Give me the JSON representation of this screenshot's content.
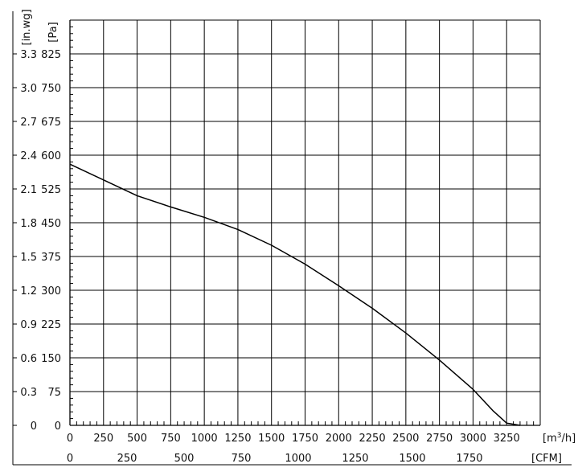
{
  "chart_data": {
    "type": "line",
    "x_label_primary": "[m³/h]",
    "x_label_primary_base": "[m",
    "x_label_primary_sup": "3",
    "x_label_primary_tail": "/h]",
    "x_label_secondary": "[CFM]",
    "y_label_primary": "[Pa]",
    "y_label_secondary": "[in.wg]",
    "x_ticks_primary": [
      "0",
      "250",
      "500",
      "750",
      "1000",
      "1250",
      "1500",
      "1750",
      "2000",
      "2250",
      "2500",
      "2750",
      "3000",
      "3250"
    ],
    "x_ticks_secondary": [
      "0",
      "250",
      "500",
      "750",
      "1000",
      "1250",
      "1500",
      "1750"
    ],
    "y_ticks_pa": [
      "0",
      "75",
      "150",
      "225",
      "300",
      "375",
      "450",
      "525",
      "600",
      "675",
      "750",
      "825"
    ],
    "y_ticks_inwg": [
      "0",
      "0.3",
      "0.6",
      "0.9",
      "1.2",
      "1.5",
      "1.8",
      "2.1",
      "2.4",
      "2.7",
      "3.0",
      "3.3"
    ],
    "xlim": [
      0,
      3500
    ],
    "ylim": [
      0,
      900
    ],
    "grid": true,
    "series": [
      {
        "x": [
          0,
          250,
          500,
          750,
          1000,
          1250,
          1500,
          1750,
          2000,
          2250,
          2500,
          2750,
          3000,
          3150,
          3250,
          3350
        ],
        "y": [
          580,
          545,
          510,
          485,
          462,
          435,
          400,
          358,
          310,
          260,
          205,
          145,
          80,
          32,
          5,
          0
        ]
      }
    ]
  }
}
